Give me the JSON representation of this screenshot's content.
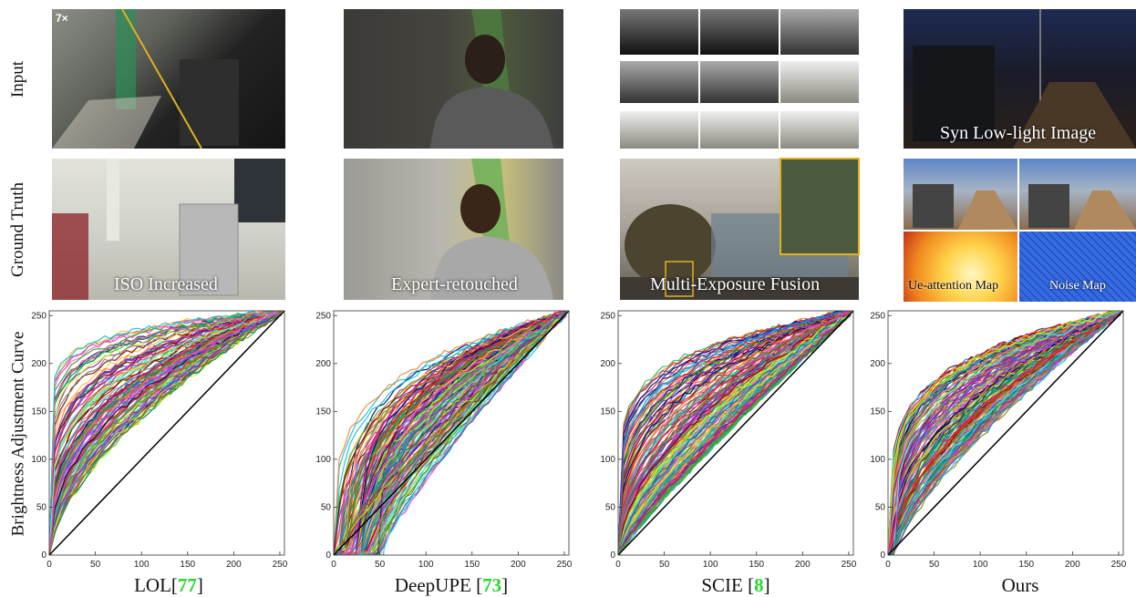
{
  "row_labels": [
    "Input",
    "Ground Truth",
    "Brightness Adjustment Curve"
  ],
  "badge": "7×",
  "captions": {
    "lol": "ISO  Increased",
    "deepupe": "Expert-retouched",
    "scie": "Multi-Exposure Fusion",
    "ours_input": "Syn Low-light Image",
    "ue_map": "Ue-attention Map",
    "noise_map": "Noise Map"
  },
  "columns": [
    {
      "name": "LOL",
      "cite": "77"
    },
    {
      "name": "DeepUPE ",
      "cite": "73"
    },
    {
      "name": "SCIE ",
      "cite": "8"
    },
    {
      "name": "Ours",
      "cite": ""
    }
  ],
  "axes": {
    "x_ticks": [
      "0",
      "50",
      "100",
      "150",
      "200",
      "250"
    ],
    "y_ticks": [
      "0",
      "50",
      "100",
      "150",
      "200",
      "250"
    ],
    "xlim": [
      0,
      255
    ],
    "ylim": [
      0,
      255
    ]
  },
  "colors": {
    "diagonal": "#000000",
    "gold_frame": "#e0b020"
  }
}
